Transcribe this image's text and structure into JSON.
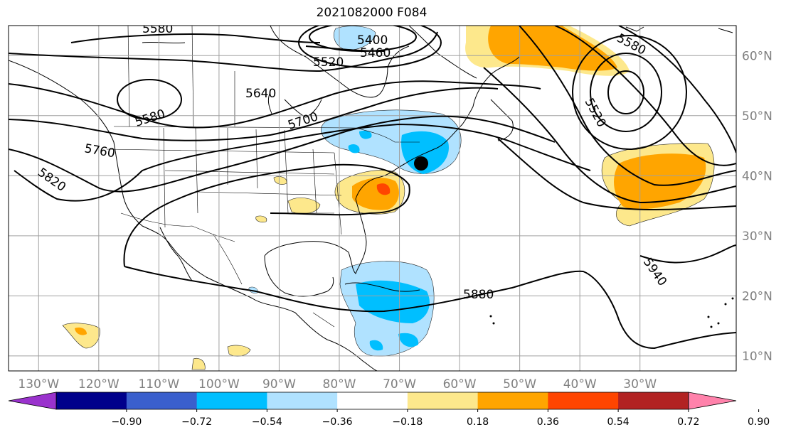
{
  "title": "2021082000 F084",
  "map": {
    "lon_range": [
      -135,
      -14
    ],
    "lat_range": [
      7.5,
      65
    ],
    "lon_ticks": [
      {
        "value": -130,
        "label": "130°W"
      },
      {
        "value": -120,
        "label": "120°W"
      },
      {
        "value": -110,
        "label": "110°W"
      },
      {
        "value": -100,
        "label": "100°W"
      },
      {
        "value": -90,
        "label": "90°W"
      },
      {
        "value": -80,
        "label": "80°W"
      },
      {
        "value": -70,
        "label": "70°W"
      },
      {
        "value": -60,
        "label": "60°W"
      },
      {
        "value": -50,
        "label": "50°W"
      },
      {
        "value": -40,
        "label": "40°W"
      },
      {
        "value": -30,
        "label": "30°W"
      }
    ],
    "lat_ticks": [
      {
        "value": 10,
        "label": "10°N"
      },
      {
        "value": 20,
        "label": "20°N"
      },
      {
        "value": 30,
        "label": "30°N"
      },
      {
        "value": 40,
        "label": "40°N"
      },
      {
        "value": 50,
        "label": "50°N"
      },
      {
        "value": 60,
        "label": "60°N"
      }
    ],
    "grid": true,
    "contour_labels": [
      "5580",
      "5400",
      "5460",
      "5520",
      "5640",
      "5580",
      "5700",
      "5760",
      "5820",
      "5580",
      "5520",
      "5880",
      "5940"
    ]
  },
  "colorbar": {
    "colors": [
      "#9a32cd",
      "#00008b",
      "#3a5fcd",
      "#00bfff",
      "#b0e2ff",
      "#ffffff",
      "#fde88c",
      "#ffa500",
      "#ff4500",
      "#b22222",
      "#ff82ab"
    ],
    "labels": [
      "−0.90",
      "−0.72",
      "−0.54",
      "−0.36",
      "−0.18",
      "0.18",
      "0.36",
      "0.54",
      "0.72",
      "0.90"
    ]
  }
}
